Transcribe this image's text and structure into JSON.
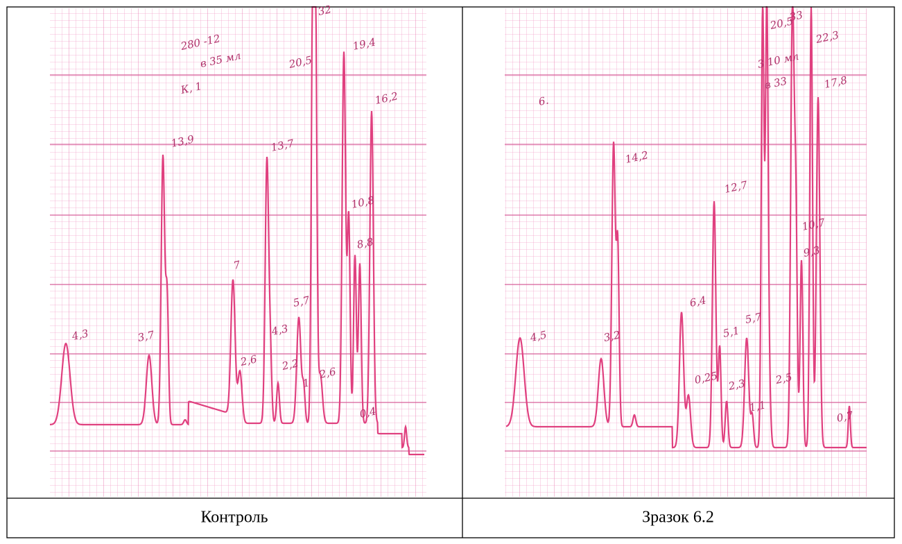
{
  "panels": [
    {
      "caption": "Контроль",
      "annotations": [
        "4,3",
        "3,7",
        "13,9",
        "7",
        "2,6",
        "13,7",
        "4,3",
        "2,2",
        "5,7",
        "1",
        "2,6",
        "20,5",
        "32",
        "19,4",
        "16,2",
        "10,8",
        "8,8",
        "0,4",
        "280 -12",
        "в 35 мл",
        "К, 1"
      ]
    },
    {
      "caption": "Зразок 6.2",
      "annotations": [
        "4,5",
        "3,2",
        "14,2",
        "6,4",
        "0,25",
        "5,1",
        "12,7",
        "2,3",
        "5,7",
        "1,1",
        "2,5",
        "20,5",
        "33",
        "22,3",
        "17,8",
        "10,7",
        "9,3",
        "0,7",
        "6.",
        "3 10 мл",
        "в 33"
      ]
    }
  ]
}
